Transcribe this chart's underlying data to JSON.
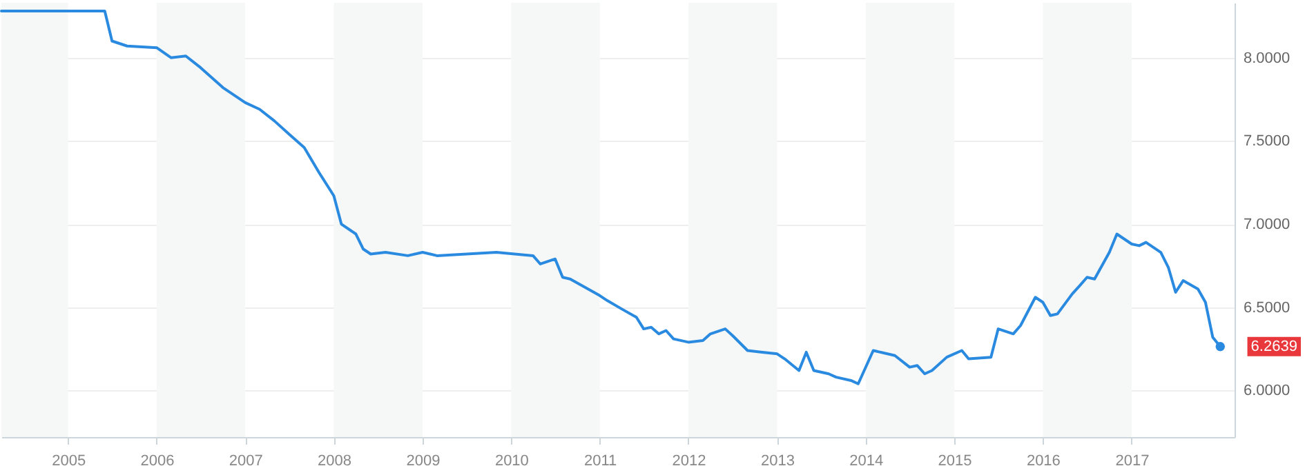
{
  "chart_data": {
    "type": "line",
    "x": [
      "2004-04",
      "2005-06",
      "2005-07",
      "2005-09",
      "2006-01",
      "2006-03",
      "2006-05",
      "2006-07",
      "2006-10",
      "2007-01",
      "2007-03",
      "2007-05",
      "2007-07",
      "2007-09",
      "2007-11",
      "2008-01",
      "2008-02",
      "2008-04",
      "2008-05",
      "2008-06",
      "2008-08",
      "2008-11",
      "2009-01",
      "2009-02",
      "2009-03",
      "2009-07",
      "2009-11",
      "2010-04",
      "2010-05",
      "2010-07",
      "2010-08",
      "2010-09",
      "2011-01",
      "2011-02",
      "2011-04",
      "2011-06",
      "2011-07",
      "2011-08",
      "2011-09",
      "2011-10",
      "2011-11",
      "2012-01",
      "2012-03",
      "2012-04",
      "2012-06",
      "2012-07",
      "2012-09",
      "2012-11",
      "2013-01",
      "2013-02",
      "2013-04",
      "2013-05",
      "2013-06",
      "2013-08",
      "2013-09",
      "2013-11",
      "2013-12",
      "2014-02",
      "2014-05",
      "2014-07",
      "2014-08",
      "2014-09",
      "2014-10",
      "2014-12",
      "2015-02",
      "2015-03",
      "2015-06",
      "2015-07",
      "2015-09",
      "2015-10",
      "2015-12",
      "2016-01",
      "2016-02",
      "2016-03",
      "2016-05",
      "2016-06",
      "2016-07",
      "2016-08",
      "2016-10",
      "2016-11",
      "2017-01",
      "2017-02",
      "2017-03",
      "2017-05",
      "2017-06",
      "2017-07",
      "2017-08",
      "2017-10",
      "2017-11",
      "2017-12",
      "2018-01"
    ],
    "series": [
      {
        "color": "#2a8ae0",
        "values": [
          8.28,
          8.28,
          8.1,
          8.07,
          8.06,
          8.0,
          8.01,
          7.94,
          7.82,
          7.73,
          7.69,
          7.62,
          7.54,
          7.46,
          7.31,
          7.17,
          7.0,
          6.94,
          6.85,
          6.82,
          6.83,
          6.81,
          6.83,
          6.82,
          6.81,
          6.82,
          6.83,
          6.81,
          6.76,
          6.79,
          6.68,
          6.67,
          6.57,
          6.54,
          6.49,
          6.44,
          6.37,
          6.38,
          6.34,
          6.36,
          6.31,
          6.29,
          6.3,
          6.34,
          6.37,
          6.33,
          6.24,
          6.23,
          6.22,
          6.19,
          6.12,
          6.23,
          6.12,
          6.1,
          6.08,
          6.06,
          6.04,
          6.24,
          6.21,
          6.14,
          6.15,
          6.1,
          6.12,
          6.2,
          6.24,
          6.19,
          6.2,
          6.37,
          6.34,
          6.39,
          6.56,
          6.53,
          6.45,
          6.46,
          6.58,
          6.63,
          6.68,
          6.67,
          6.83,
          6.94,
          6.88,
          6.87,
          6.89,
          6.83,
          6.74,
          6.59,
          6.66,
          6.61,
          6.53,
          6.32,
          6.2639
        ]
      }
    ],
    "xlim": [
      "2004-04",
      "2018-03"
    ],
    "xticks": [
      "2005",
      "2006",
      "2007",
      "2008",
      "2009",
      "2010",
      "2011",
      "2012",
      "2013",
      "2014",
      "2015",
      "2016",
      "2017"
    ],
    "ylim": [
      5.72,
      8.33
    ],
    "yticks": [
      {
        "value": 6,
        "label": "6.0000"
      },
      {
        "value": 6.5,
        "label": "6.5000"
      },
      {
        "value": 7,
        "label": "7.0000"
      },
      {
        "value": 7.5,
        "label": "7.5000"
      },
      {
        "value": 8,
        "label": "8.0000"
      }
    ],
    "grid": "y",
    "bands": [
      {
        "axis": "x",
        "from": "2004-04",
        "to": "2005",
        "color": "#f6f8f8"
      },
      {
        "axis": "x",
        "from": "2006",
        "to": "2007",
        "color": "#f6f8f8"
      },
      {
        "axis": "x",
        "from": "2008",
        "to": "2009",
        "color": "#f6f8f8"
      },
      {
        "axis": "x",
        "from": "2010",
        "to": "2011",
        "color": "#f6f8f8"
      },
      {
        "axis": "x",
        "from": "2012",
        "to": "2013",
        "color": "#f6f8f8"
      },
      {
        "axis": "x",
        "from": "2014",
        "to": "2015",
        "color": "#f6f8f8"
      },
      {
        "axis": "x",
        "from": "2016",
        "to": "2017",
        "color": "#f6f8f8"
      }
    ],
    "annotations": [
      {
        "text": "6.2639",
        "x": "2018-01",
        "y": 6.2639
      }
    ]
  }
}
